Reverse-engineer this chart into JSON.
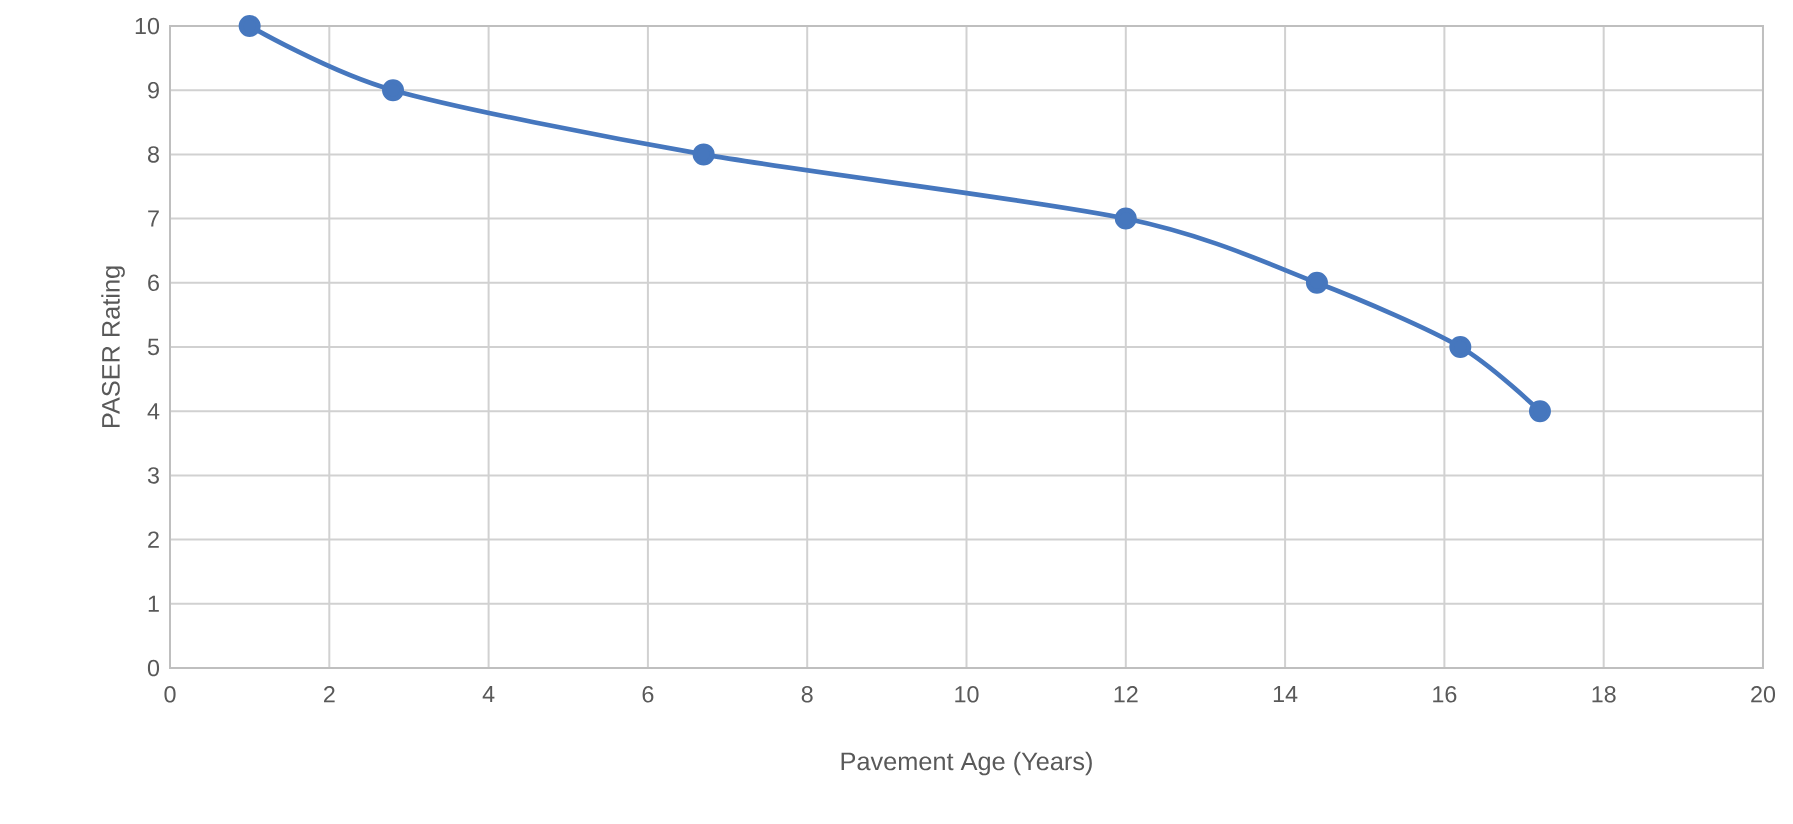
{
  "chart_data": {
    "type": "line",
    "xlabel": "Pavement Age (Years)",
    "ylabel": "PASER Rating",
    "x": [
      1.0,
      2.8,
      6.7,
      12.0,
      14.4,
      16.2,
      17.2
    ],
    "series": [
      {
        "color": "#4677be",
        "values": [
          10,
          9,
          8,
          7,
          6,
          5,
          4
        ]
      }
    ],
    "xlim": [
      0,
      20
    ],
    "ylim": [
      0,
      10
    ],
    "xticks": [
      0,
      2,
      4,
      6,
      8,
      10,
      12,
      14,
      16,
      18,
      20
    ],
    "yticks": [
      0,
      1,
      2,
      3,
      4,
      5,
      6,
      7,
      8,
      9,
      10
    ],
    "grid": true,
    "marker": "circle",
    "line_style": "solid"
  }
}
